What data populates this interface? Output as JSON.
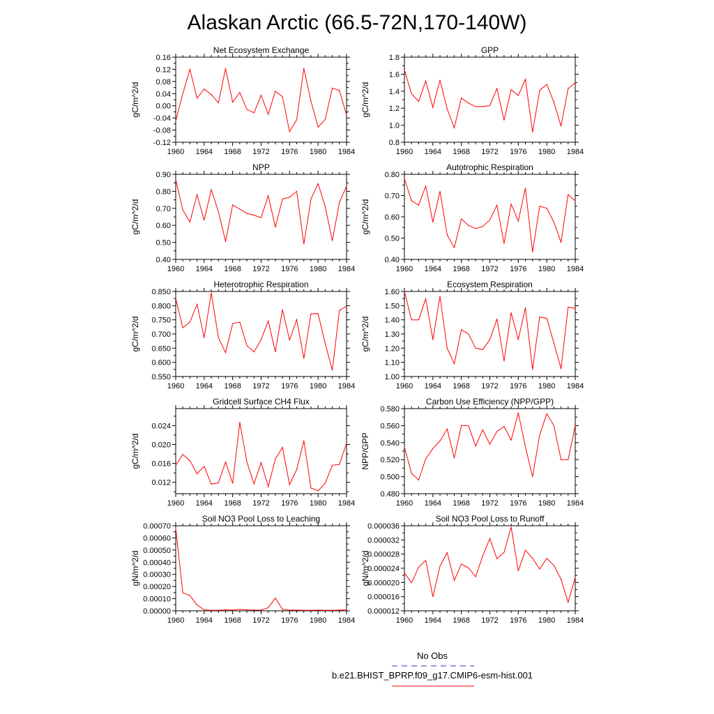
{
  "figure_title": "Alaskan Arctic (66.5-72N,170-140W)",
  "x_ticks": [
    "1960",
    "1964",
    "1968",
    "1972",
    "1976",
    "1980",
    "1984"
  ],
  "series_color": "#ff0000",
  "obs_color": "#3333cc",
  "legend": {
    "obs_label": "No Obs",
    "model_label": "b.e21.BHIST_BPRP.f09_g17.CMIP6-esm-hist.001"
  },
  "chart_data": [
    {
      "type": "line",
      "title": "Net Ecosystem Exchange",
      "ylabel": "gC/m^2/d",
      "x": [
        1960,
        1961,
        1962,
        1963,
        1964,
        1965,
        1966,
        1967,
        1968,
        1969,
        1970,
        1971,
        1972,
        1973,
        1974,
        1975,
        1976,
        1977,
        1978,
        1979,
        1980,
        1981,
        1982,
        1983,
        1984
      ],
      "values": [
        -0.05,
        0.04,
        0.12,
        0.025,
        0.055,
        0.037,
        0.01,
        0.123,
        0.012,
        0.044,
        -0.012,
        -0.023,
        0.035,
        -0.028,
        0.048,
        0.03,
        -0.085,
        -0.046,
        0.123,
        0.015,
        -0.07,
        -0.045,
        0.058,
        0.05,
        -0.03
      ],
      "ylim": [
        -0.12,
        0.16
      ],
      "yticks": [
        "-0.12",
        "-0.08",
        "-0.04",
        "0.00",
        "0.04",
        "0.08",
        "0.12",
        "0.16"
      ],
      "ytick_values": [
        -0.12,
        -0.08,
        -0.04,
        0.0,
        0.04,
        0.08,
        0.12,
        0.16
      ],
      "yticks_minor": [
        "-0.10",
        "-0.06",
        "-0.02",
        "0.02",
        "0.06",
        "0.10",
        "0.14"
      ],
      "yticks_minor_values": [
        -0.1,
        -0.06,
        -0.02,
        0.02,
        0.06,
        0.1,
        0.14
      ]
    },
    {
      "type": "line",
      "title": "GPP",
      "ylabel": "gC/m^2/d",
      "x": [
        1960,
        1961,
        1962,
        1963,
        1964,
        1965,
        1966,
        1967,
        1968,
        1969,
        1970,
        1971,
        1972,
        1973,
        1974,
        1975,
        1976,
        1977,
        1978,
        1979,
        1980,
        1981,
        1982,
        1983,
        1984
      ],
      "values": [
        1.65,
        1.37,
        1.28,
        1.52,
        1.21,
        1.53,
        1.19,
        0.97,
        1.32,
        1.26,
        1.22,
        1.22,
        1.23,
        1.43,
        1.06,
        1.42,
        1.35,
        1.54,
        0.92,
        1.41,
        1.48,
        1.27,
        0.99,
        1.43,
        1.5
      ],
      "ylim": [
        0.8,
        1.8
      ],
      "yticks": [
        "0.8",
        "1.0",
        "1.2",
        "1.4",
        "1.6",
        "1.8"
      ],
      "ytick_values": [
        0.8,
        1.0,
        1.2,
        1.4,
        1.6,
        1.8
      ],
      "yticks_minor": [
        "0.9",
        "1.1",
        "1.3",
        "1.5",
        "1.7"
      ],
      "yticks_minor_values": [
        0.9,
        1.1,
        1.3,
        1.5,
        1.7
      ]
    },
    {
      "type": "line",
      "title": "NPP",
      "ylabel": "gC/m^2/d",
      "x": [
        1960,
        1961,
        1962,
        1963,
        1964,
        1965,
        1966,
        1967,
        1968,
        1969,
        1970,
        1971,
        1972,
        1973,
        1974,
        1975,
        1976,
        1977,
        1978,
        1979,
        1980,
        1981,
        1982,
        1983,
        1984
      ],
      "values": [
        0.87,
        0.69,
        0.62,
        0.78,
        0.63,
        0.81,
        0.68,
        0.505,
        0.72,
        0.695,
        0.67,
        0.66,
        0.645,
        0.775,
        0.59,
        0.755,
        0.765,
        0.8,
        0.49,
        0.755,
        0.845,
        0.71,
        0.51,
        0.735,
        0.83
      ],
      "ylim": [
        0.4,
        0.9
      ],
      "yticks": [
        "0.40",
        "0.50",
        "0.60",
        "0.70",
        "0.80",
        "0.90"
      ],
      "ytick_values": [
        0.4,
        0.5,
        0.6,
        0.7,
        0.8,
        0.9
      ],
      "yticks_minor": [
        "0.45",
        "0.55",
        "0.65",
        "0.75",
        "0.85"
      ],
      "yticks_minor_values": [
        0.45,
        0.55,
        0.65,
        0.75,
        0.85
      ]
    },
    {
      "type": "line",
      "title": "Autotrophic Respiration",
      "ylabel": "gC/m^2/d",
      "x": [
        1960,
        1961,
        1962,
        1963,
        1964,
        1965,
        1966,
        1967,
        1968,
        1969,
        1970,
        1971,
        1972,
        1973,
        1974,
        1975,
        1976,
        1977,
        1978,
        1979,
        1980,
        1981,
        1982,
        1983,
        1984
      ],
      "values": [
        0.78,
        0.675,
        0.655,
        0.745,
        0.575,
        0.72,
        0.515,
        0.455,
        0.59,
        0.56,
        0.545,
        0.555,
        0.585,
        0.655,
        0.475,
        0.66,
        0.58,
        0.735,
        0.435,
        0.65,
        0.64,
        0.575,
        0.48,
        0.705,
        0.675
      ],
      "ylim": [
        0.4,
        0.8
      ],
      "yticks": [
        "0.40",
        "0.50",
        "0.60",
        "0.70",
        "0.80"
      ],
      "ytick_values": [
        0.4,
        0.5,
        0.6,
        0.7,
        0.8
      ],
      "yticks_minor": [
        "0.45",
        "0.55",
        "0.65",
        "0.75"
      ],
      "yticks_minor_values": [
        0.45,
        0.55,
        0.65,
        0.75
      ]
    },
    {
      "type": "line",
      "title": "Heterotrophic Respiration",
      "ylabel": "gC/m^2/d",
      "x": [
        1960,
        1961,
        1962,
        1963,
        1964,
        1965,
        1966,
        1967,
        1968,
        1969,
        1970,
        1971,
        1972,
        1973,
        1974,
        1975,
        1976,
        1977,
        1978,
        1979,
        1980,
        1981,
        1982,
        1983,
        1984
      ],
      "values": [
        0.825,
        0.722,
        0.742,
        0.805,
        0.687,
        0.845,
        0.687,
        0.634,
        0.737,
        0.742,
        0.659,
        0.637,
        0.68,
        0.746,
        0.637,
        0.786,
        0.679,
        0.751,
        0.614,
        0.771,
        0.772,
        0.666,
        0.572,
        0.783,
        0.798
      ],
      "ylim": [
        0.55,
        0.85
      ],
      "yticks": [
        "0.550",
        "0.600",
        "0.650",
        "0.700",
        "0.750",
        "0.800",
        "0.850"
      ],
      "ytick_values": [
        0.55,
        0.6,
        0.65,
        0.7,
        0.75,
        0.8,
        0.85
      ],
      "yticks_minor": [
        "0.575",
        "0.625",
        "0.675",
        "0.725",
        "0.775",
        "0.825"
      ],
      "yticks_minor_values": [
        0.575,
        0.625,
        0.675,
        0.725,
        0.775,
        0.825
      ]
    },
    {
      "type": "line",
      "title": "Ecosystem Respiration",
      "ylabel": "gC/m^2/d",
      "x": [
        1960,
        1961,
        1962,
        1963,
        1964,
        1965,
        1966,
        1967,
        1968,
        1969,
        1970,
        1971,
        1972,
        1973,
        1974,
        1975,
        1976,
        1977,
        1978,
        1979,
        1980,
        1981,
        1982,
        1983,
        1984
      ],
      "values": [
        1.6,
        1.4,
        1.4,
        1.55,
        1.26,
        1.565,
        1.2,
        1.09,
        1.33,
        1.3,
        1.2,
        1.19,
        1.26,
        1.405,
        1.11,
        1.45,
        1.26,
        1.485,
        1.05,
        1.42,
        1.41,
        1.235,
        1.055,
        1.49,
        1.48
      ],
      "ylim": [
        1.0,
        1.6
      ],
      "yticks": [
        "1.00",
        "1.10",
        "1.20",
        "1.30",
        "1.40",
        "1.50",
        "1.60"
      ],
      "ytick_values": [
        1.0,
        1.1,
        1.2,
        1.3,
        1.4,
        1.5,
        1.6
      ],
      "yticks_minor": [
        "1.05",
        "1.15",
        "1.25",
        "1.35",
        "1.45",
        "1.55"
      ],
      "yticks_minor_values": [
        1.05,
        1.15,
        1.25,
        1.35,
        1.45,
        1.55
      ]
    },
    {
      "type": "line",
      "title": "Gridcell Surface CH4 Flux",
      "ylabel": "gC/m^2/d",
      "x": [
        1960,
        1961,
        1962,
        1963,
        1964,
        1965,
        1966,
        1967,
        1968,
        1969,
        1970,
        1971,
        1972,
        1973,
        1974,
        1975,
        1976,
        1977,
        1978,
        1979,
        1980,
        1981,
        1982,
        1983,
        1984
      ],
      "values": [
        0.0156,
        0.0179,
        0.0166,
        0.0138,
        0.0154,
        0.0116,
        0.0119,
        0.0163,
        0.0118,
        0.0247,
        0.0163,
        0.0117,
        0.0162,
        0.0111,
        0.0169,
        0.0194,
        0.0115,
        0.0147,
        0.0208,
        0.0108,
        0.0102,
        0.0118,
        0.0156,
        0.0158,
        0.0203
      ],
      "ylim": [
        0.0096,
        0.0276
      ],
      "yticks": [
        "0.012",
        "0.016",
        "0.020",
        "0.024"
      ],
      "ytick_values": [
        0.012,
        0.016,
        0.02,
        0.024
      ],
      "yticks_minor": [
        "0.010",
        "0.014",
        "0.018",
        "0.022",
        "0.026"
      ],
      "yticks_minor_values": [
        0.01,
        0.014,
        0.018,
        0.022,
        0.026
      ]
    },
    {
      "type": "line",
      "title": "Carbon Use Efficiency (NPP/GPP)",
      "ylabel": "NPP/GPP",
      "x": [
        1960,
        1961,
        1962,
        1963,
        1964,
        1965,
        1966,
        1967,
        1968,
        1969,
        1970,
        1971,
        1972,
        1973,
        1974,
        1975,
        1976,
        1977,
        1978,
        1979,
        1980,
        1981,
        1982,
        1983,
        1984
      ],
      "values": [
        0.535,
        0.504,
        0.496,
        0.521,
        0.533,
        0.542,
        0.556,
        0.522,
        0.56,
        0.56,
        0.536,
        0.555,
        0.538,
        0.553,
        0.559,
        0.543,
        0.575,
        0.535,
        0.5,
        0.549,
        0.574,
        0.56,
        0.52,
        0.52,
        0.56
      ],
      "ylim": [
        0.48,
        0.58
      ],
      "yticks": [
        "0.480",
        "0.500",
        "0.520",
        "0.540",
        "0.560",
        "0.580"
      ],
      "ytick_values": [
        0.48,
        0.5,
        0.52,
        0.54,
        0.56,
        0.58
      ],
      "yticks_minor": [
        "0.490",
        "0.510",
        "0.530",
        "0.550",
        "0.570"
      ],
      "yticks_minor_values": [
        0.49,
        0.51,
        0.53,
        0.55,
        0.57
      ]
    },
    {
      "type": "line",
      "title": "Soil NO3 Pool Loss to Leaching",
      "ylabel": "gN/m^2/d",
      "x": [
        1960,
        1961,
        1962,
        1963,
        1964,
        1965,
        1966,
        1967,
        1968,
        1969,
        1970,
        1971,
        1972,
        1973,
        1974,
        1975,
        1976,
        1977,
        1978,
        1979,
        1980,
        1981,
        1982,
        1983,
        1984
      ],
      "values": [
        0.00068,
        0.000148,
        0.000125,
        4.8e-05,
        8e-06,
        4e-06,
        4e-06,
        8e-06,
        6e-06,
        1.2e-05,
        8e-06,
        6e-06,
        6e-06,
        2.5e-05,
        0.000105,
        1.2e-05,
        6e-06,
        6e-06,
        4e-06,
        4e-06,
        6e-06,
        4e-06,
        4e-06,
        6e-06,
        8e-06
      ],
      "ylim": [
        0.0,
        0.0007
      ],
      "yticks": [
        "0.00000",
        "0.00010",
        "0.00020",
        "0.00030",
        "0.00040",
        "0.00050",
        "0.00060",
        "0.00070"
      ],
      "ytick_values": [
        0.0,
        0.0001,
        0.0002,
        0.0003,
        0.0004,
        0.0005,
        0.0006,
        0.0007
      ],
      "yticks_minor": [
        "0.00005",
        "0.00015",
        "0.00025",
        "0.00035",
        "0.00045",
        "0.00055",
        "0.00065"
      ],
      "yticks_minor_values": [
        5e-05,
        0.00015,
        0.00025,
        0.00035,
        0.00045,
        0.00055,
        0.00065
      ]
    },
    {
      "type": "line",
      "title": "Soil NO3 Pool Loss to Runoff",
      "ylabel": "gN/m^2/d",
      "x": [
        1960,
        1961,
        1962,
        1963,
        1964,
        1965,
        1966,
        1967,
        1968,
        1969,
        1970,
        1971,
        1972,
        1973,
        1974,
        1975,
        1976,
        1977,
        1978,
        1979,
        1980,
        1981,
        1982,
        1983,
        1984
      ],
      "values": [
        2.27e-05,
        1.99e-05,
        2.43e-05,
        2.62e-05,
        1.6e-05,
        2.46e-05,
        2.84e-05,
        2.06e-05,
        2.52e-05,
        2.41e-05,
        2.16e-05,
        2.75e-05,
        3.24e-05,
        2.67e-05,
        2.85e-05,
        3.56e-05,
        2.33e-05,
        2.91e-05,
        2.68e-05,
        2.38e-05,
        2.68e-05,
        2.48e-05,
        2.09e-05,
        1.44e-05,
        2.14e-05
      ],
      "ylim": [
        1.2e-05,
        3.6e-05
      ],
      "yticks": [
        "0.000012",
        "0.000016",
        "0.000020",
        "0.000024",
        "0.000028",
        "0.000032",
        "0.000036"
      ],
      "ytick_values": [
        1.2e-05,
        1.6e-05,
        2e-05,
        2.4e-05,
        2.8e-05,
        3.2e-05,
        3.6e-05
      ],
      "yticks_minor": [
        "0.000014",
        "0.000018",
        "0.000022",
        "0.000026",
        "0.000030",
        "0.000034"
      ],
      "yticks_minor_values": [
        1.4e-05,
        1.8e-05,
        2.2e-05,
        2.6e-05,
        3e-05,
        3.4e-05
      ]
    }
  ]
}
